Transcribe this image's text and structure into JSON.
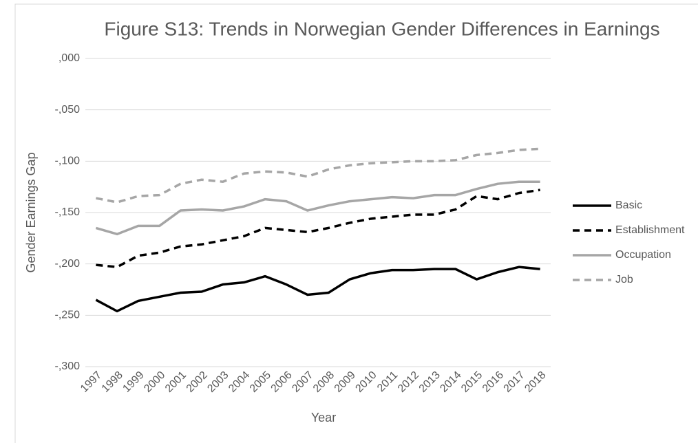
{
  "chart_data": {
    "type": "line",
    "title": "Figure S13: Trends in Norwegian Gender Differences in Earnings",
    "x_label": "Year",
    "y_label": "Gender Earnings Gap",
    "categories": [
      "1997",
      "1998",
      "1999",
      "2000",
      "2001",
      "2002",
      "2003",
      "2004",
      "2005",
      "2006",
      "2007",
      "2008",
      "2009",
      "2010",
      "2011",
      "2012",
      "2013",
      "2014",
      "2015",
      "2016",
      "2017",
      "2018"
    ],
    "ylim": [
      -0.3,
      0
    ],
    "yticks": [
      {
        "value": 0,
        "label": ",000"
      },
      {
        "value": -0.05,
        "label": "-,050"
      },
      {
        "value": -0.1,
        "label": "-,100"
      },
      {
        "value": -0.15,
        "label": "-,150"
      },
      {
        "value": -0.2,
        "label": "-,200"
      },
      {
        "value": -0.25,
        "label": "-,250"
      },
      {
        "value": -0.3,
        "label": "-,300"
      }
    ],
    "grid": true,
    "legend": "right",
    "series": [
      {
        "name": "Basic",
        "color": "#000000",
        "style": "solid",
        "values": [
          -0.235,
          -0.246,
          -0.236,
          -0.232,
          -0.228,
          -0.227,
          -0.22,
          -0.218,
          -0.212,
          -0.22,
          -0.23,
          -0.228,
          -0.215,
          -0.209,
          -0.206,
          -0.206,
          -0.205,
          -0.205,
          -0.215,
          -0.208,
          -0.203,
          -0.205
        ]
      },
      {
        "name": "Establishment",
        "color": "#000000",
        "style": "dashed",
        "values": [
          -0.201,
          -0.203,
          -0.192,
          -0.189,
          -0.183,
          -0.181,
          -0.177,
          -0.173,
          -0.165,
          -0.167,
          -0.169,
          -0.165,
          -0.16,
          -0.156,
          -0.154,
          -0.152,
          -0.152,
          -0.147,
          -0.134,
          -0.137,
          -0.131,
          -0.128
        ]
      },
      {
        "name": "Occupation",
        "color": "#a6a6a6",
        "style": "solid",
        "values": [
          -0.165,
          -0.171,
          -0.163,
          -0.163,
          -0.148,
          -0.147,
          -0.148,
          -0.144,
          -0.137,
          -0.139,
          -0.148,
          -0.143,
          -0.139,
          -0.137,
          -0.135,
          -0.136,
          -0.133,
          -0.133,
          -0.127,
          -0.122,
          -0.12,
          -0.12
        ]
      },
      {
        "name": "Job",
        "color": "#a6a6a6",
        "style": "dashed",
        "values": [
          -0.136,
          -0.14,
          -0.134,
          -0.133,
          -0.122,
          -0.118,
          -0.12,
          -0.112,
          -0.11,
          -0.111,
          -0.115,
          -0.108,
          -0.104,
          -0.102,
          -0.101,
          -0.1,
          -0.1,
          -0.099,
          -0.094,
          -0.092,
          -0.089,
          -0.088
        ]
      }
    ]
  }
}
